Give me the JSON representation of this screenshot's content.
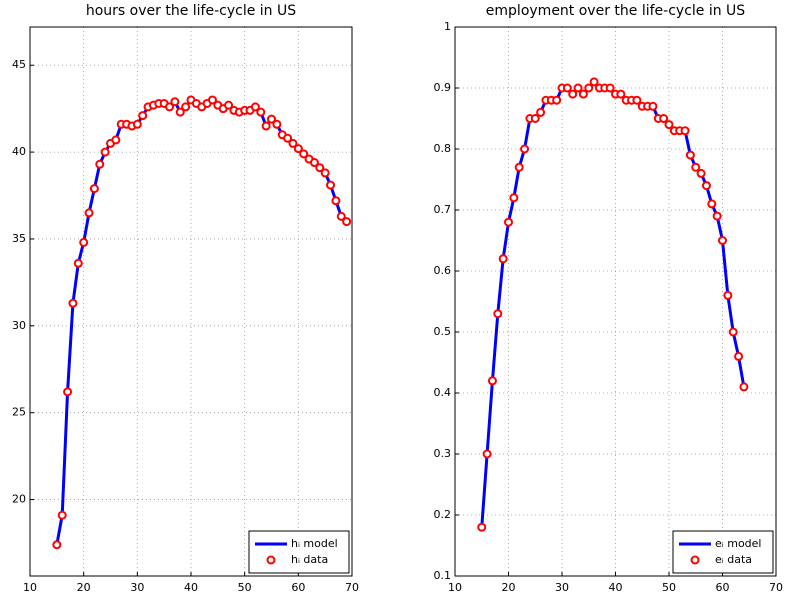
{
  "chart_data": [
    {
      "type": "line",
      "title": "hours over the life-cycle in US",
      "x": [
        15,
        16,
        17,
        18,
        19,
        20,
        21,
        22,
        23,
        24,
        25,
        26,
        27,
        28,
        29,
        30,
        31,
        32,
        33,
        34,
        35,
        36,
        37,
        38,
        39,
        40,
        41,
        42,
        43,
        44,
        45,
        46,
        47,
        48,
        49,
        50,
        51,
        52,
        53,
        54,
        55,
        56,
        57,
        58,
        59,
        60,
        61,
        62,
        63,
        64,
        65,
        66,
        67,
        68,
        69
      ],
      "series": [
        {
          "name": "hᵢ model",
          "color": "#0000ff",
          "style": "line",
          "values": [
            17.4,
            19.1,
            26.2,
            31.3,
            33.6,
            34.8,
            36.5,
            37.9,
            39.3,
            40.0,
            40.5,
            40.7,
            41.6,
            41.6,
            41.5,
            41.6,
            42.1,
            42.6,
            42.7,
            42.8,
            42.8,
            42.6,
            42.9,
            42.3,
            42.6,
            43.0,
            42.8,
            42.6,
            42.8,
            43.0,
            42.7,
            42.5,
            42.7,
            42.4,
            42.3,
            42.4,
            42.4,
            42.6,
            42.3,
            41.5,
            41.9,
            41.6,
            41.0,
            40.8,
            40.5,
            40.2,
            39.9,
            39.6,
            39.4,
            39.1,
            38.8,
            38.1,
            37.2,
            36.3,
            36.0
          ]
        },
        {
          "name": "hᵢ data",
          "color": "#ff0000",
          "style": "circle",
          "values": [
            17.4,
            19.1,
            26.2,
            31.3,
            33.6,
            34.8,
            36.5,
            37.9,
            39.3,
            40.0,
            40.5,
            40.7,
            41.6,
            41.6,
            41.5,
            41.6,
            42.1,
            42.6,
            42.7,
            42.8,
            42.8,
            42.6,
            42.9,
            42.3,
            42.6,
            43.0,
            42.8,
            42.6,
            42.8,
            43.0,
            42.7,
            42.5,
            42.7,
            42.4,
            42.3,
            42.4,
            42.4,
            42.6,
            42.3,
            41.5,
            41.9,
            41.6,
            41.0,
            40.8,
            40.5,
            40.2,
            39.9,
            39.6,
            39.4,
            39.1,
            38.8,
            38.1,
            37.2,
            36.3,
            36.0
          ]
        }
      ],
      "xlim": [
        10,
        70
      ],
      "xticks": [
        10,
        20,
        30,
        40,
        50,
        60,
        70
      ],
      "ylim": [
        15.6,
        47.2
      ],
      "yticks": [
        20,
        25,
        30,
        35,
        40,
        45
      ],
      "grid": true,
      "legend": "lower right"
    },
    {
      "type": "line",
      "title": "employment over the life-cycle in US",
      "x": [
        15,
        16,
        17,
        18,
        19,
        20,
        21,
        22,
        23,
        24,
        25,
        26,
        27,
        28,
        29,
        30,
        31,
        32,
        33,
        34,
        35,
        36,
        37,
        38,
        39,
        40,
        41,
        42,
        43,
        44,
        45,
        46,
        47,
        48,
        49,
        50,
        51,
        52,
        53,
        54,
        55,
        56,
        57,
        58,
        59,
        60,
        61,
        62,
        63,
        64
      ],
      "series": [
        {
          "name": "eᵢ model",
          "color": "#0000ff",
          "style": "line",
          "values": [
            0.18,
            0.3,
            0.42,
            0.53,
            0.62,
            0.68,
            0.72,
            0.77,
            0.8,
            0.85,
            0.85,
            0.86,
            0.88,
            0.88,
            0.88,
            0.9,
            0.9,
            0.89,
            0.9,
            0.89,
            0.9,
            0.91,
            0.9,
            0.9,
            0.9,
            0.89,
            0.89,
            0.88,
            0.88,
            0.88,
            0.87,
            0.87,
            0.87,
            0.85,
            0.85,
            0.84,
            0.83,
            0.83,
            0.83,
            0.79,
            0.77,
            0.76,
            0.74,
            0.71,
            0.69,
            0.65,
            0.56,
            0.5,
            0.46,
            0.41
          ]
        },
        {
          "name": "eᵢ data",
          "color": "#ff0000",
          "style": "circle",
          "values": [
            0.18,
            0.3,
            0.42,
            0.53,
            0.62,
            0.68,
            0.72,
            0.77,
            0.8,
            0.85,
            0.85,
            0.86,
            0.88,
            0.88,
            0.88,
            0.9,
            0.9,
            0.89,
            0.9,
            0.89,
            0.9,
            0.91,
            0.9,
            0.9,
            0.9,
            0.89,
            0.89,
            0.88,
            0.88,
            0.88,
            0.87,
            0.87,
            0.87,
            0.85,
            0.85,
            0.84,
            0.83,
            0.83,
            0.83,
            0.79,
            0.77,
            0.76,
            0.74,
            0.71,
            0.69,
            0.65,
            0.56,
            0.5,
            0.46,
            0.41
          ]
        }
      ],
      "xlim": [
        10,
        70
      ],
      "xticks": [
        10,
        20,
        30,
        40,
        50,
        60,
        70
      ],
      "ylim": [
        0.1,
        1
      ],
      "yticks": [
        0.1,
        0.2,
        0.3,
        0.4,
        0.5,
        0.6,
        0.7,
        0.8,
        0.9,
        1
      ],
      "grid": true,
      "legend": "lower right"
    }
  ]
}
